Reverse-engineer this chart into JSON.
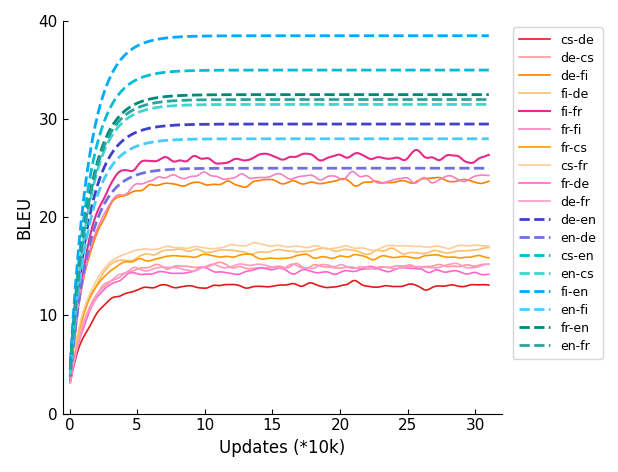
{
  "title": "",
  "xlabel": "Updates (*10k)",
  "ylabel": "BLEU",
  "xlim": [
    -0.5,
    32
  ],
  "ylim": [
    0,
    40
  ],
  "xticks": [
    0,
    5,
    10,
    15,
    20,
    25,
    30
  ],
  "yticks": [
    0,
    10,
    20,
    30,
    40
  ],
  "series": [
    {
      "label": "cs-de",
      "color": "#e31a1c",
      "linestyle": "-",
      "linewidth": 1.2,
      "final": 13.0,
      "start": 2.5,
      "noise": 0.6
    },
    {
      "label": "de-cs",
      "color": "#fb9a99",
      "linestyle": "-",
      "linewidth": 1.2,
      "final": 15.0,
      "start": 3.0,
      "noise": 0.5
    },
    {
      "label": "de-fi",
      "color": "#ff7f00",
      "linestyle": "-",
      "linewidth": 1.2,
      "final": 23.5,
      "start": 3.5,
      "noise": 0.7
    },
    {
      "label": "fi-de",
      "color": "#fdbf6f",
      "linestyle": "-",
      "linewidth": 1.2,
      "final": 16.5,
      "start": 3.0,
      "noise": 0.5
    },
    {
      "label": "fi-fr",
      "color": "#e7298a",
      "linestyle": "-",
      "linewidth": 1.5,
      "final": 26.0,
      "start": 3.0,
      "noise": 0.8
    },
    {
      "label": "fr-fi",
      "color": "#f781bf",
      "linestyle": "-",
      "linewidth": 1.2,
      "final": 24.0,
      "start": 3.5,
      "noise": 0.9
    },
    {
      "label": "fr-cs",
      "color": "#ff9900",
      "linestyle": "-",
      "linewidth": 1.2,
      "final": 16.0,
      "start": 4.0,
      "noise": 0.5
    },
    {
      "label": "cs-fr",
      "color": "#ffcc99",
      "linestyle": "-",
      "linewidth": 1.2,
      "final": 17.0,
      "start": 3.5,
      "noise": 0.5
    },
    {
      "label": "fr-de",
      "color": "#ff66cc",
      "linestyle": "-",
      "linewidth": 1.2,
      "final": 14.5,
      "start": 3.0,
      "noise": 0.6
    },
    {
      "label": "de-fr",
      "color": "#ff99cc",
      "linestyle": "-",
      "linewidth": 1.2,
      "final": 15.0,
      "start": 2.8,
      "noise": 0.5
    },
    {
      "label": "de-en",
      "color": "#4040cc",
      "linestyle": "--",
      "linewidth": 2.0,
      "final": 29.5,
      "start": 3.0,
      "noise": 0.2
    },
    {
      "label": "en-de",
      "color": "#7070dd",
      "linestyle": "--",
      "linewidth": 2.0,
      "final": 25.0,
      "start": 3.0,
      "noise": 0.2
    },
    {
      "label": "cs-en",
      "color": "#00bcd4",
      "linestyle": "--",
      "linewidth": 2.0,
      "final": 35.0,
      "start": 3.5,
      "noise": 0.2
    },
    {
      "label": "en-cs",
      "color": "#40d4cc",
      "linestyle": "--",
      "linewidth": 2.0,
      "final": 31.5,
      "start": 3.0,
      "noise": 0.2
    },
    {
      "label": "fi-en",
      "color": "#00aaff",
      "linestyle": "--",
      "linewidth": 2.0,
      "final": 38.5,
      "start": 4.0,
      "noise": 0.2
    },
    {
      "label": "en-fi",
      "color": "#44ccff",
      "linestyle": "--",
      "linewidth": 2.0,
      "final": 28.0,
      "start": 3.5,
      "noise": 0.2
    },
    {
      "label": "fr-en",
      "color": "#00897b",
      "linestyle": "--",
      "linewidth": 2.0,
      "final": 32.5,
      "start": 3.5,
      "noise": 0.2
    },
    {
      "label": "en-fr",
      "color": "#26a69a",
      "linestyle": "--",
      "linewidth": 2.0,
      "final": 32.0,
      "start": 3.5,
      "noise": 0.2
    }
  ],
  "n_points": 310,
  "x_max": 31,
  "figsize": [
    6.18,
    4.72
  ],
  "dpi": 100
}
